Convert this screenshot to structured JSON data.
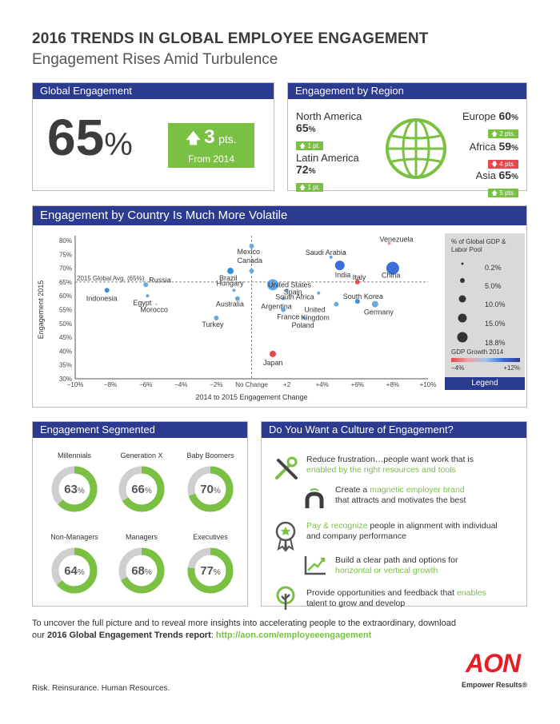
{
  "header": {
    "title": "2016 TRENDS IN GLOBAL EMPLOYEE ENGAGEMENT",
    "subtitle": "Engagement Rises Amid Turbulence"
  },
  "global": {
    "section": "Global Engagement",
    "value": "65",
    "unit": "%",
    "change": "3",
    "change_unit": "pts.",
    "change_caption": "From 2014"
  },
  "region": {
    "section": "Engagement by Region",
    "items": [
      {
        "name": "North America",
        "value": "65",
        "badge": "1 pt.",
        "direction": "up"
      },
      {
        "name": "Latin America",
        "value": "72",
        "badge": "1 pt.",
        "direction": "up"
      },
      {
        "name": "Europe",
        "value": "60",
        "badge": "2 pts.",
        "direction": "up"
      },
      {
        "name": "Africa",
        "value": "59",
        "badge": "4 pts.",
        "direction": "down"
      },
      {
        "name": "Asia",
        "value": "65",
        "badge": "5 pts.",
        "direction": "up"
      }
    ],
    "pct": "%",
    "globe_icon": "globe-icon"
  },
  "country": {
    "section": "Engagement by Country Is Much More Volatile",
    "avg_label": "2015 Global Avg. (65%)",
    "no_change_label": "No Change",
    "legend": {
      "title": "% of Global GDP & Labor Pool",
      "sizes": [
        "0.2%",
        "5.0%",
        "10.0%",
        "15.0%",
        "18.8%"
      ],
      "growth_title": "GDP Growth 2014",
      "growth_min": "−4%",
      "growth_max": "+12%",
      "footer": "Legend"
    }
  },
  "chart_data": {
    "type": "scatter",
    "xlabel": "2014 to 2015 Engagement Change",
    "ylabel": "Engagement 2015",
    "xlim": [
      -10,
      10
    ],
    "ylim": [
      30,
      80
    ],
    "xticks": [
      "−10%",
      "−8%",
      "−6%",
      "−4%",
      "−2%",
      "",
      "+2",
      "+4%",
      "+6%",
      "+8%",
      "+10%"
    ],
    "yticks": [
      "30%",
      "35%",
      "40%",
      "45%",
      "50%",
      "55%",
      "60%",
      "65%",
      "70%",
      "75%",
      "80%"
    ],
    "points": [
      {
        "name": "Indonesia",
        "x": -8.2,
        "y": 62,
        "size": 3,
        "color": "#3a8fd8"
      },
      {
        "name": "Russia",
        "x": -6.0,
        "y": 64,
        "size": 3,
        "color": "#6aa8e0"
      },
      {
        "name": "Egypt",
        "x": -5.9,
        "y": 60,
        "size": 2,
        "color": "#6aa8e0"
      },
      {
        "name": "Morocco",
        "x": -5.4,
        "y": 57,
        "size": 1,
        "color": "#6aa8e0"
      },
      {
        "name": "Brazil",
        "x": -1.2,
        "y": 69,
        "size": 4,
        "color": "#3a8fd8"
      },
      {
        "name": "Hungary",
        "x": -1.0,
        "y": 62,
        "size": 2,
        "color": "#6aa8e0"
      },
      {
        "name": "Australia",
        "x": -0.8,
        "y": 59,
        "size": 3,
        "color": "#6aa8e0"
      },
      {
        "name": "Turkey",
        "x": -2.0,
        "y": 52,
        "size": 3,
        "color": "#6aa8e0"
      },
      {
        "name": "Mexico",
        "x": 0.0,
        "y": 78,
        "size": 3,
        "color": "#6aa8e0"
      },
      {
        "name": "Canada",
        "x": 0.0,
        "y": 69,
        "size": 3,
        "color": "#6aa8e0"
      },
      {
        "name": "United States",
        "x": 1.2,
        "y": 64,
        "size": 7,
        "color": "#5ea6e6"
      },
      {
        "name": "Spain",
        "x": 2.0,
        "y": 62,
        "size": 2,
        "color": "#6aa8e0"
      },
      {
        "name": "Argentina",
        "x": 1.8,
        "y": 59,
        "size": 2,
        "color": "#6aa8e0"
      },
      {
        "name": "France",
        "x": 1.8,
        "y": 55,
        "size": 3,
        "color": "#6aa8e0"
      },
      {
        "name": "Japan",
        "x": 1.2,
        "y": 39,
        "size": 4,
        "color": "#e5484d"
      },
      {
        "name": "Poland",
        "x": 3.0,
        "y": 52,
        "size": 2,
        "color": "#6aa8e0"
      },
      {
        "name": "South Africa",
        "x": 3.8,
        "y": 61,
        "size": 2,
        "color": "#6aa8e0"
      },
      {
        "name": "United Kingdom",
        "x": 4.8,
        "y": 57,
        "size": 3,
        "color": "#6aa8e0"
      },
      {
        "name": "Saudi Arabia",
        "x": 4.5,
        "y": 74,
        "size": 2,
        "color": "#6aa8e0"
      },
      {
        "name": "India",
        "x": 5.0,
        "y": 71,
        "size": 6,
        "color": "#3a6fd8"
      },
      {
        "name": "Italy",
        "x": 6.0,
        "y": 65,
        "size": 3,
        "color": "#e5484d"
      },
      {
        "name": "South Korea",
        "x": 6.0,
        "y": 58,
        "size": 3,
        "color": "#3a8fd8"
      },
      {
        "name": "Germany",
        "x": 7.0,
        "y": 57,
        "size": 4,
        "color": "#6aa8e0"
      },
      {
        "name": "Venezuela",
        "x": 7.8,
        "y": 79,
        "size": 2,
        "color": "#f0a0a0"
      },
      {
        "name": "China",
        "x": 8.0,
        "y": 70,
        "size": 8,
        "color": "#3a6fd8"
      }
    ],
    "avg_line_y": 65,
    "grid": false
  },
  "segmented": {
    "section": "Engagement Segmented",
    "items": [
      {
        "name": "Millennials",
        "value": 63
      },
      {
        "name": "Generation X",
        "value": 66
      },
      {
        "name": "Baby Boomers",
        "value": 70
      },
      {
        "name": "Non-Managers",
        "value": 64
      },
      {
        "name": "Managers",
        "value": 68
      },
      {
        "name": "Executives",
        "value": 77
      }
    ],
    "pct": "%"
  },
  "culture": {
    "section": "Do You Want a Culture of Engagement?",
    "items": [
      {
        "icon": "tools-icon",
        "plain1": "Reduce frustration…people want work that is",
        "highlight": "enabled by the right resources and tools",
        "plain2": ""
      },
      {
        "icon": "magnet-icon",
        "plain1": "Create a ",
        "highlight": "magnetic employer brand",
        "plain2": "that attracts and motivates the best"
      },
      {
        "icon": "award-ribbon-icon",
        "plain1": "",
        "highlight": "Pay & recognize",
        "plain2": " people in alignment with individual and company performance"
      },
      {
        "icon": "growth-arrow-icon",
        "plain1": "Build a clear path and options for",
        "highlight": "horizontal or vertical growth",
        "plain2": ""
      },
      {
        "icon": "tree-icon",
        "plain1": "Provide opportunities and feedback that ",
        "highlight": "enables",
        "plain2": "talent to grow and develop"
      }
    ]
  },
  "footer": {
    "line1": "To uncover the full picture and to reveal more insights into accelerating people to the extraordinary, download",
    "line2_prefix": "our ",
    "line2_bold": "2016 Global Engagement Trends report",
    "line2_sep": ": ",
    "link": "http://aon.com/employeeengagement",
    "tagline": "Risk. Reinsurance. Human Resources.",
    "brand": "AON",
    "brand_slogan": "Empower Results®"
  },
  "colors": {
    "navy": "#2b3b8f",
    "green": "#7ac143",
    "red": "#e5484d",
    "blue": "#3a8fd8"
  }
}
